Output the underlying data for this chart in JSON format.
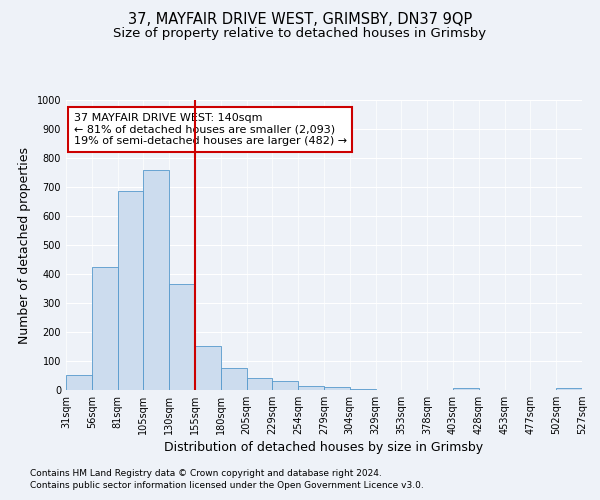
{
  "title": "37, MAYFAIR DRIVE WEST, GRIMSBY, DN37 9QP",
  "subtitle": "Size of property relative to detached houses in Grimsby",
  "xlabel": "Distribution of detached houses by size in Grimsby",
  "ylabel": "Number of detached properties",
  "footnote1": "Contains HM Land Registry data © Crown copyright and database right 2024.",
  "footnote2": "Contains public sector information licensed under the Open Government Licence v3.0.",
  "annotation_line1": "37 MAYFAIR DRIVE WEST: 140sqm",
  "annotation_line2": "← 81% of detached houses are smaller (2,093)",
  "annotation_line3": "19% of semi-detached houses are larger (482) →",
  "bar_values": [
    52,
    425,
    685,
    760,
    365,
    153,
    75,
    40,
    30,
    15,
    10,
    5,
    0,
    0,
    0,
    8,
    0,
    0,
    0,
    8
  ],
  "categories": [
    "31sqm",
    "56sqm",
    "81sqm",
    "105sqm",
    "130sqm",
    "155sqm",
    "180sqm",
    "205sqm",
    "229sqm",
    "254sqm",
    "279sqm",
    "304sqm",
    "329sqm",
    "353sqm",
    "378sqm",
    "403sqm",
    "428sqm",
    "453sqm",
    "477sqm",
    "502sqm",
    "527sqm"
  ],
  "bar_color": "#ccdcee",
  "bar_edge_color": "#5599cc",
  "vline_color": "#cc0000",
  "vline_x_index": 4,
  "ylim": [
    0,
    1000
  ],
  "yticks": [
    0,
    100,
    200,
    300,
    400,
    500,
    600,
    700,
    800,
    900,
    1000
  ],
  "bg_color": "#eef2f8",
  "grid_color": "#ffffff",
  "annotation_box_color": "white",
  "annotation_box_edge": "#cc0000",
  "title_fontsize": 10.5,
  "subtitle_fontsize": 9.5,
  "axis_label_fontsize": 9,
  "tick_fontsize": 7,
  "annotation_fontsize": 8,
  "footnote_fontsize": 6.5
}
